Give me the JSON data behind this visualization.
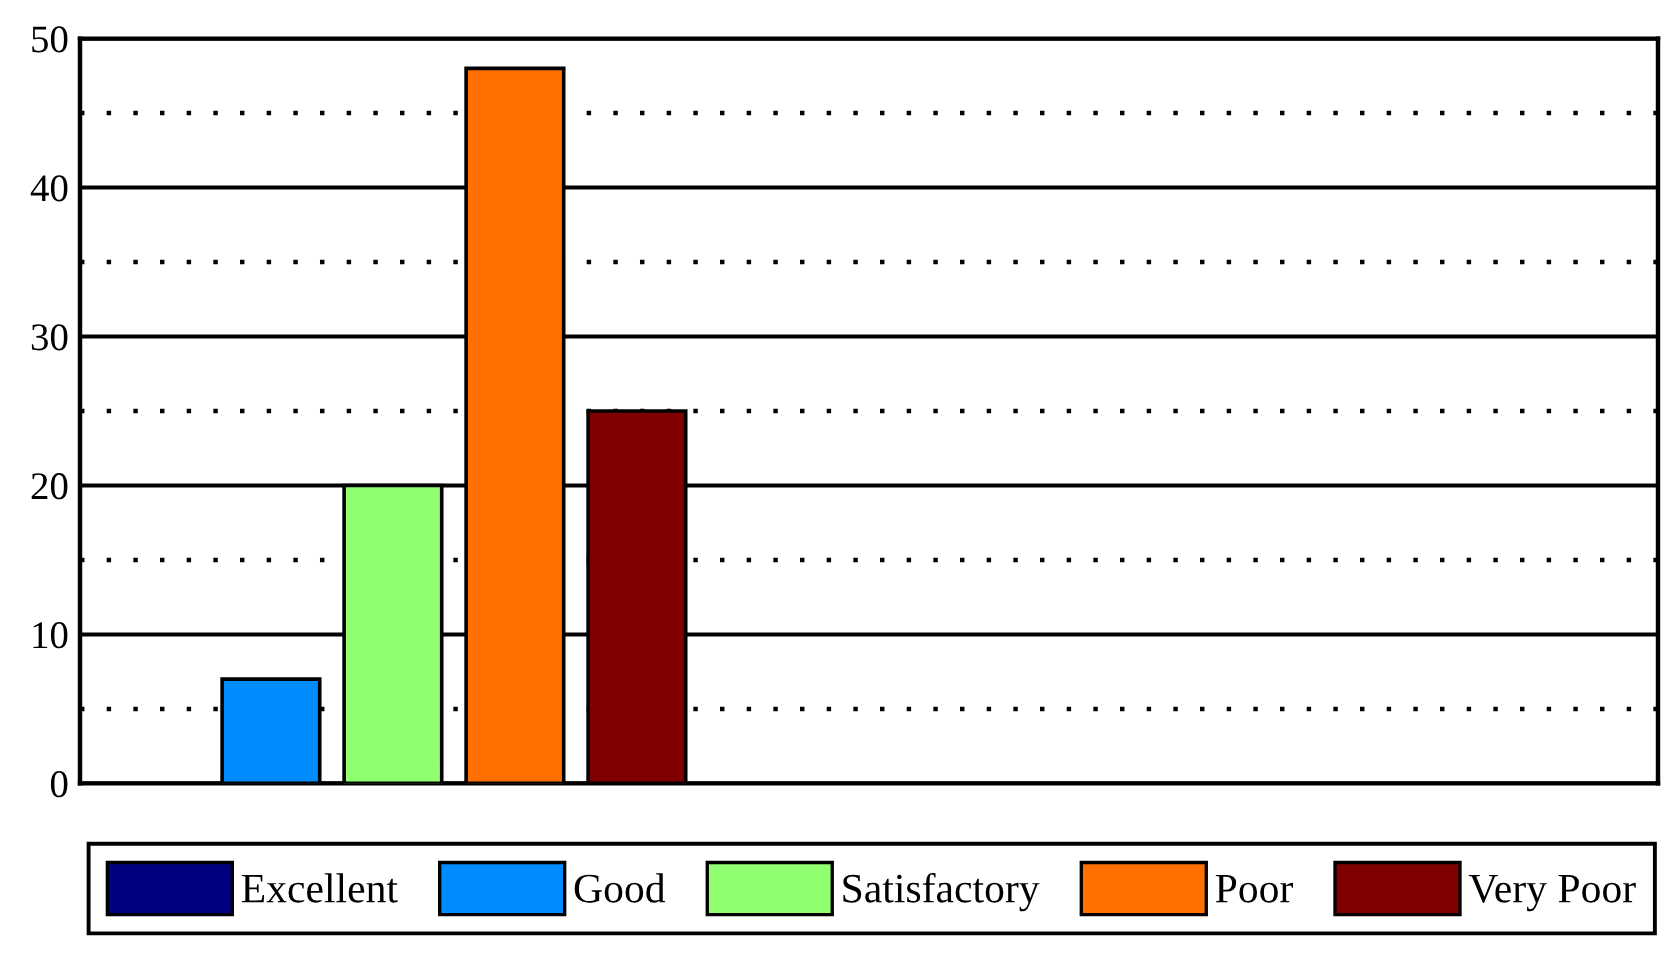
{
  "chart_data": {
    "type": "bar",
    "categories": [
      null
    ],
    "series": [
      {
        "name": "Excellent",
        "color": "#000080",
        "values": [
          0
        ]
      },
      {
        "name": "Good",
        "color": "#008cff",
        "values": [
          7
        ]
      },
      {
        "name": "Satisfactory",
        "color": "#90ff70",
        "values": [
          20
        ]
      },
      {
        "name": "Poor",
        "color": "#ff7000",
        "values": [
          48
        ]
      },
      {
        "name": "Very Poor",
        "color": "#800000",
        "values": [
          25
        ]
      }
    ],
    "ylim": [
      0,
      50
    ],
    "yticks": [
      0,
      {
        "value": 5,
        "label": null
      },
      10,
      {
        "value": 15,
        "label": null
      },
      20,
      {
        "value": 25,
        "label": null
      },
      30,
      {
        "value": 35,
        "label": null
      },
      40,
      {
        "value": 45,
        "label": null
      },
      50
    ],
    "grid": "y",
    "legend": "bottom",
    "tick_labels": "y"
  }
}
